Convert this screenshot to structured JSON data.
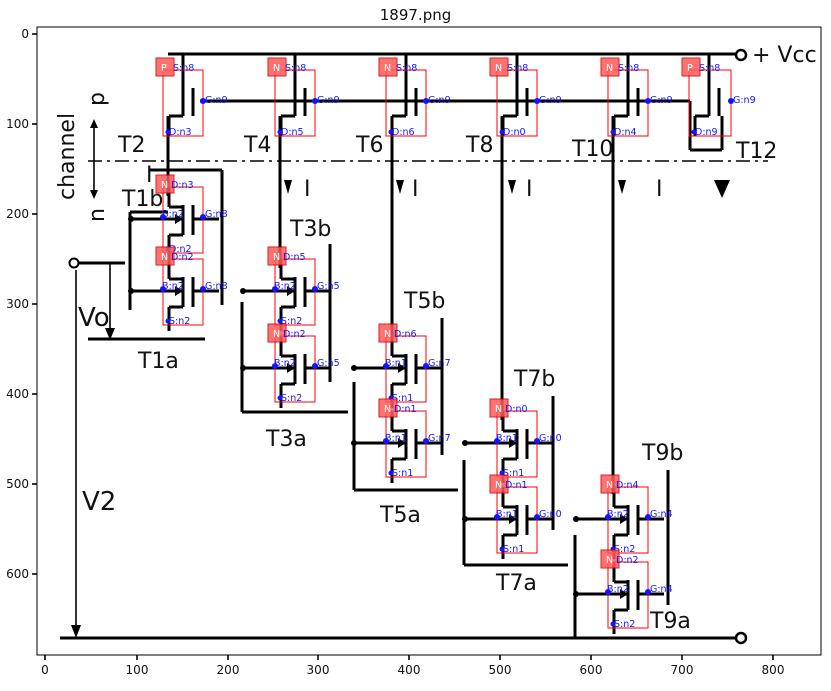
{
  "title": "1897.png",
  "axes": {
    "x_ticks": [
      "0",
      "100",
      "200",
      "300",
      "400",
      "500",
      "600",
      "700",
      "800"
    ],
    "y_ticks": [
      "0",
      "100",
      "200",
      "300",
      "400",
      "500",
      "600"
    ]
  },
  "labels": {
    "vcc": "+ Vcc",
    "channel": "channel",
    "p": "p",
    "n": "n",
    "vo": "Vo",
    "v2": "V2",
    "current": "I",
    "t2": "T2",
    "t4": "T4",
    "t6": "T6",
    "t8": "T8",
    "t10": "T10",
    "t12": "T12",
    "t1b": "T1b",
    "t1a": "T1a",
    "t3b": "T3b",
    "t3a": "T3a",
    "t5b": "T5b",
    "t5a": "T5a",
    "t7b": "T7b",
    "t7a": "T7a",
    "t9b": "T9b",
    "t9a": "T9a"
  },
  "top_row": [
    {
      "tag": "P",
      "s": "S:n8",
      "g": "G:n9",
      "d": "D:n3"
    },
    {
      "tag": "N",
      "s": "S:n8",
      "g": "G:n9",
      "d": "D:n5"
    },
    {
      "tag": "N",
      "s": "S:n8",
      "g": "G:n9",
      "d": "D:n6"
    },
    {
      "tag": "N",
      "s": "S:n8",
      "g": "G:n9",
      "d": "D:n0"
    },
    {
      "tag": "N",
      "s": "S:n8",
      "g": "G:n9",
      "d": "D:n4"
    },
    {
      "tag": "P",
      "s": "S:n8",
      "g": "G:n9",
      "d": "D:n9"
    }
  ],
  "stacks": [
    {
      "tag": "N",
      "d": "D:n3",
      "b": "B:n2",
      "g": "G:n8",
      "s": "D:n2"
    },
    {
      "tag": "N",
      "d": "D:n2",
      "b": "B:n2",
      "g": "G:n8",
      "s": "S:n2"
    },
    {
      "tag": "N",
      "d": "D:n5",
      "b": "B:n2",
      "g": "G:n5",
      "s": "S:n2"
    },
    {
      "tag": "N",
      "d": "D:n2",
      "b": "B:n2",
      "g": "G:n5",
      "s": "S:n2"
    },
    {
      "tag": "N",
      "d": "D:n6",
      "b": "B:n1",
      "g": "G:n7",
      "s": "S:n1"
    },
    {
      "tag": "N",
      "d": "D:n1",
      "b": "B:n1",
      "g": "G:n7",
      "s": "S:n1"
    },
    {
      "tag": "N",
      "d": "D:n0",
      "b": "B:n1",
      "g": "G:n0",
      "s": "S:n1"
    },
    {
      "tag": "N",
      "d": "D:n1",
      "b": "B:n1",
      "g": "G:n0",
      "s": "S:n1"
    },
    {
      "tag": "N",
      "d": "D:n4",
      "b": "B:n2",
      "g": "G:n4",
      "s": "S:n2"
    },
    {
      "tag": "N",
      "d": "D:n2",
      "b": "B:n2",
      "g": "G:n4",
      "s": "S:n2"
    }
  ],
  "colors": {
    "pin_text": "#1414ff",
    "box": "#ff0000",
    "tag_fill": "#ff5a5a",
    "ink": "#000000"
  }
}
